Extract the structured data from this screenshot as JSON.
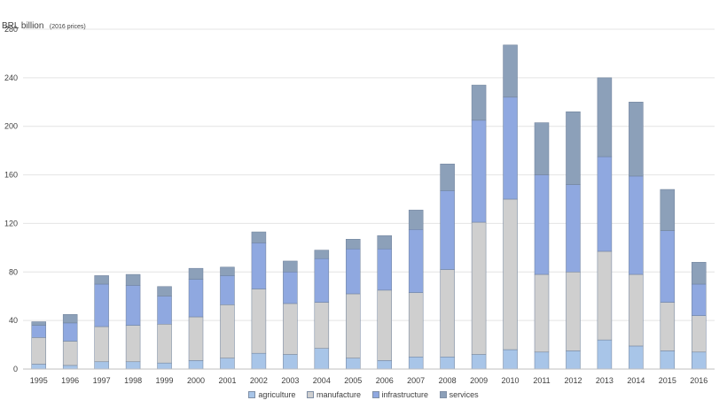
{
  "chart_data": {
    "type": "bar",
    "stacked": true,
    "ylabel": "BRL billion",
    "ylabel_note": "(2016 prices)",
    "ylim": [
      0,
      280
    ],
    "yticks": [
      0,
      40,
      80,
      120,
      160,
      200,
      240,
      280
    ],
    "grid": true,
    "legend_position": "bottom",
    "categories": [
      "1995",
      "1996",
      "1997",
      "1998",
      "1999",
      "2000",
      "2001",
      "2002",
      "2003",
      "2004",
      "2005",
      "2006",
      "2007",
      "2008",
      "2009",
      "2010",
      "2011",
      "2012",
      "2013",
      "2014",
      "2015",
      "2016"
    ],
    "series": [
      {
        "name": "agriculture",
        "color": "#a8c5e8",
        "values": [
          4,
          3,
          6,
          6,
          5,
          7,
          9,
          13,
          12,
          17,
          9,
          7,
          10,
          10,
          12,
          16,
          14,
          15,
          24,
          19,
          15,
          14
        ]
      },
      {
        "name": "manufacture",
        "color": "#cfcfcf",
        "values": [
          22,
          20,
          29,
          30,
          32,
          36,
          44,
          53,
          42,
          38,
          53,
          58,
          53,
          72,
          109,
          124,
          64,
          65,
          73,
          59,
          40,
          30
        ]
      },
      {
        "name": "infrastructure",
        "color": "#8fa8e0",
        "values": [
          10,
          15,
          35,
          33,
          23,
          31,
          24,
          38,
          26,
          36,
          37,
          34,
          52,
          65,
          84,
          84,
          82,
          72,
          78,
          81,
          59,
          26
        ]
      },
      {
        "name": "services",
        "color": "#8ca0b9",
        "values": [
          3,
          7,
          7,
          9,
          8,
          9,
          7,
          9,
          9,
          7,
          8,
          11,
          16,
          22,
          29,
          43,
          43,
          60,
          65,
          61,
          34,
          18
        ]
      }
    ]
  }
}
